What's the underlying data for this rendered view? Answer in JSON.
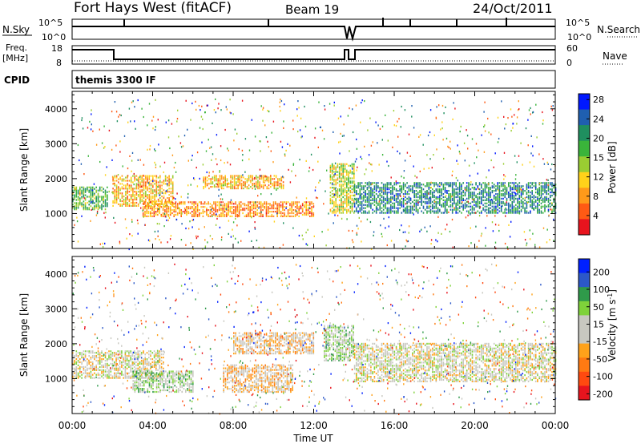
{
  "header": {
    "title": "Fort Hays West (fitACF)",
    "beam": "Beam 19",
    "date": "24/Oct/2011"
  },
  "strips": {
    "nsky_label": "N.Sky",
    "nsearch_label": "N.Search",
    "noise_ticks_left": [
      "10^5",
      "10^0"
    ],
    "noise_ticks_right": [
      "10^5",
      "10^0"
    ],
    "freq_label": "Freq.",
    "freq_unit": "[MHz]",
    "freq_ticks": [
      "18",
      "8"
    ],
    "nave_label": "Nave",
    "nave_ticks": [
      "60",
      "0"
    ],
    "cpid_label": "CPID",
    "cpid_text": "themis 3300 IF"
  },
  "colors": {
    "power": [
      "#0018ff",
      "#1f5fb0",
      "#1f8f5f",
      "#3ab43a",
      "#9acd32",
      "#ffd21a",
      "#ff9a1a",
      "#ff5a14",
      "#e8141e"
    ],
    "velocity": [
      "#0020ff",
      "#2c58c8",
      "#2f9a4a",
      "#7fd23a",
      "#c8c8c0",
      "#c8c8c0",
      "#ffa21a",
      "#ff7a12",
      "#ff4a10",
      "#e8141e"
    ]
  },
  "chart_data": [
    {
      "type": "heatmap",
      "title": "",
      "xlabel": "",
      "ylabel": "Slant Range [km]",
      "xlim": [
        "00:00",
        "24:00"
      ],
      "ylim": [
        0,
        4500
      ],
      "x_ticks": [
        "00:00",
        "04:00",
        "08:00",
        "12:00",
        "16:00",
        "20:00",
        "00:00"
      ],
      "y_ticks": [
        "1000",
        "2000",
        "3000",
        "4000"
      ],
      "colorbar": {
        "label": "Power [dB]",
        "ticks": [
          "4",
          "8",
          "12",
          "15",
          "20",
          "24",
          "28"
        ],
        "range": [
          0,
          30
        ]
      },
      "bands": [
        {
          "t": [
            0.0,
            1.8
          ],
          "range": [
            1100,
            1750
          ],
          "value": 18
        },
        {
          "t": [
            2.0,
            5.0
          ],
          "range": [
            1200,
            2100
          ],
          "value": 10
        },
        {
          "t": [
            3.5,
            12.0
          ],
          "range": [
            900,
            1350
          ],
          "value": 8
        },
        {
          "t": [
            6.5,
            10.5
          ],
          "range": [
            1700,
            2100
          ],
          "value": 10
        },
        {
          "t": [
            12.8,
            14.0
          ],
          "range": [
            1000,
            2400
          ],
          "value": 14
        },
        {
          "t": [
            14.0,
            24.0
          ],
          "range": [
            1000,
            1900
          ],
          "value": 22
        }
      ]
    },
    {
      "type": "heatmap",
      "title": "",
      "xlabel": "Time UT",
      "ylabel": "Slant Range [km]",
      "xlim": [
        "00:00",
        "24:00"
      ],
      "ylim": [
        0,
        4500
      ],
      "x_ticks": [
        "00:00",
        "04:00",
        "08:00",
        "12:00",
        "16:00",
        "20:00",
        "00:00"
      ],
      "y_ticks": [
        "1000",
        "2000",
        "3000",
        "4000"
      ],
      "colorbar": {
        "label": "Velocity [m s-1]",
        "ticks": [
          "200",
          "100",
          "50",
          "15",
          "-15",
          "-50",
          "-100",
          "-200"
        ],
        "range": [
          -250,
          250
        ]
      },
      "bands": [
        {
          "t": [
            0.0,
            4.5
          ],
          "range": [
            1000,
            1800
          ],
          "value": 0
        },
        {
          "t": [
            3.0,
            6.0
          ],
          "range": [
            600,
            1200
          ],
          "value": 40
        },
        {
          "t": [
            7.5,
            11.0
          ],
          "range": [
            600,
            1400
          ],
          "value": -40
        },
        {
          "t": [
            8.0,
            12.0
          ],
          "range": [
            1700,
            2300
          ],
          "value": -40
        },
        {
          "t": [
            12.5,
            14.0
          ],
          "range": [
            1500,
            2500
          ],
          "value": 40
        },
        {
          "t": [
            14.0,
            24.0
          ],
          "range": [
            900,
            2000
          ],
          "value": 0
        }
      ]
    }
  ]
}
